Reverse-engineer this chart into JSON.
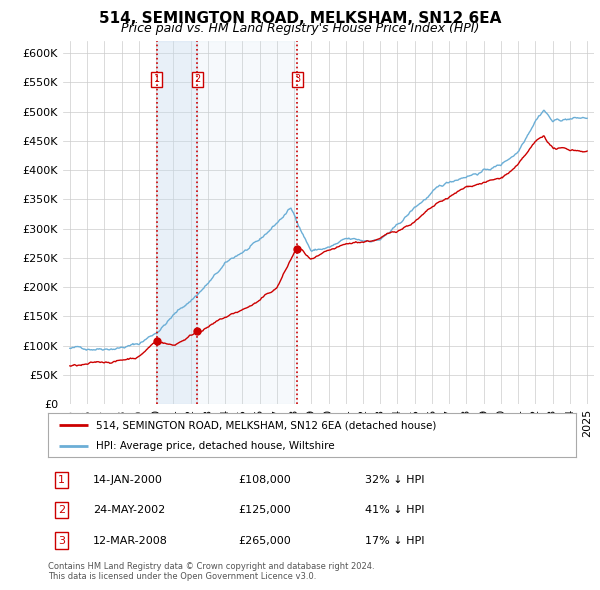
{
  "title": "514, SEMINGTON ROAD, MELKSHAM, SN12 6EA",
  "subtitle": "Price paid vs. HM Land Registry's House Price Index (HPI)",
  "ylim": [
    0,
    620000
  ],
  "yticks": [
    0,
    50000,
    100000,
    150000,
    200000,
    250000,
    300000,
    350000,
    400000,
    450000,
    500000,
    550000,
    600000
  ],
  "sale_prices": [
    108000,
    125000,
    265000
  ],
  "sale_labels": [
    "1",
    "2",
    "3"
  ],
  "sale_date_nums": [
    2000.04,
    2002.39,
    2008.2
  ],
  "legend_property": "514, SEMINGTON ROAD, MELKSHAM, SN12 6EA (detached house)",
  "legend_hpi": "HPI: Average price, detached house, Wiltshire",
  "transactions": [
    {
      "num": "1",
      "date": "14-JAN-2000",
      "price": "£108,000",
      "pct": "32% ↓ HPI"
    },
    {
      "num": "2",
      "date": "24-MAY-2002",
      "price": "£125,000",
      "pct": "41% ↓ HPI"
    },
    {
      "num": "3",
      "date": "12-MAR-2008",
      "price": "£265,000",
      "pct": "17% ↓ HPI"
    }
  ],
  "footnote": "Contains HM Land Registry data © Crown copyright and database right 2024.\nThis data is licensed under the Open Government Licence v3.0.",
  "property_color": "#cc0000",
  "hpi_color": "#6baed6",
  "shade_color": "#c6dbef",
  "vline_color": "#cc0000",
  "background_color": "#ffffff",
  "grid_color": "#cccccc"
}
